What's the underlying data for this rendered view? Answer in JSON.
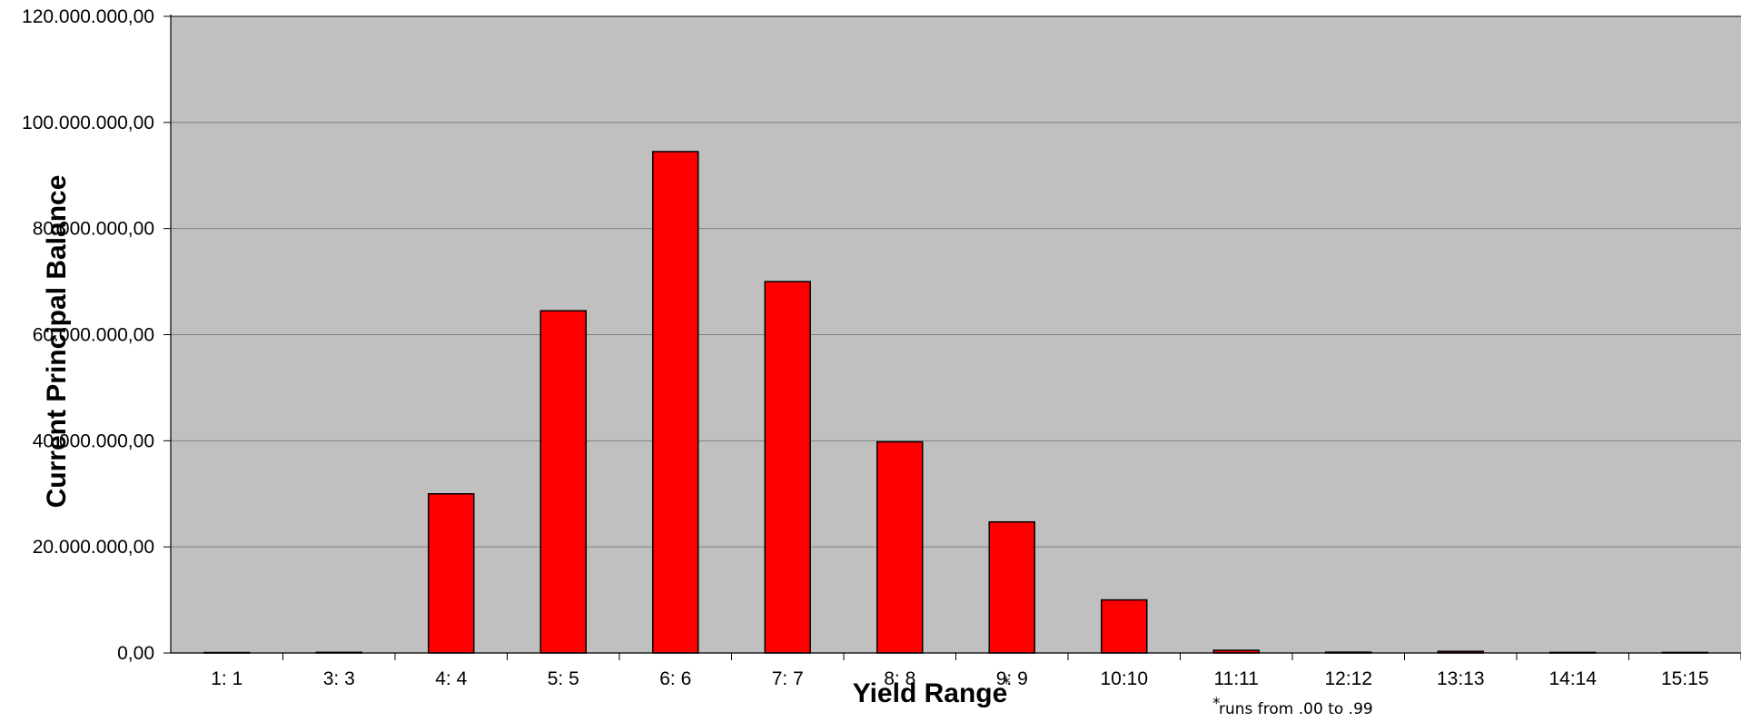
{
  "chart_data": {
    "type": "bar",
    "categories": [
      "1: 1",
      "3: 3",
      "4: 4",
      "5: 5",
      "6: 6",
      "7: 7",
      "8: 8",
      "9: 9",
      "10:10",
      "11:11",
      "12:12",
      "13:13",
      "14:14",
      "15:15"
    ],
    "series": [
      {
        "values": [
          80000,
          120000,
          30000000,
          64500000,
          94500000,
          70000000,
          39800000,
          24700000,
          10000000,
          500000,
          150000,
          300000,
          100000,
          100000
        ]
      }
    ],
    "ylim": [
      0,
      120000000
    ],
    "yticks": [
      "0,00",
      "20.000.000,00",
      "40.000.000,00",
      "60.000.000,00",
      "80.000.000,00",
      "100.000.000,00",
      "120.000.000,00"
    ],
    "xlabel": "Yield Range",
    "xlabel_marker": "*",
    "ylabel": "Current Principal Balance",
    "footnote_marker": "*",
    "footnote": "runs from .00 to .99",
    "grid": true,
    "legend": "none",
    "colors": {
      "plot_bg": "#c0c0c0",
      "bar": "#ff0000",
      "bar_edge": "#000000",
      "grid": "#808080"
    }
  }
}
